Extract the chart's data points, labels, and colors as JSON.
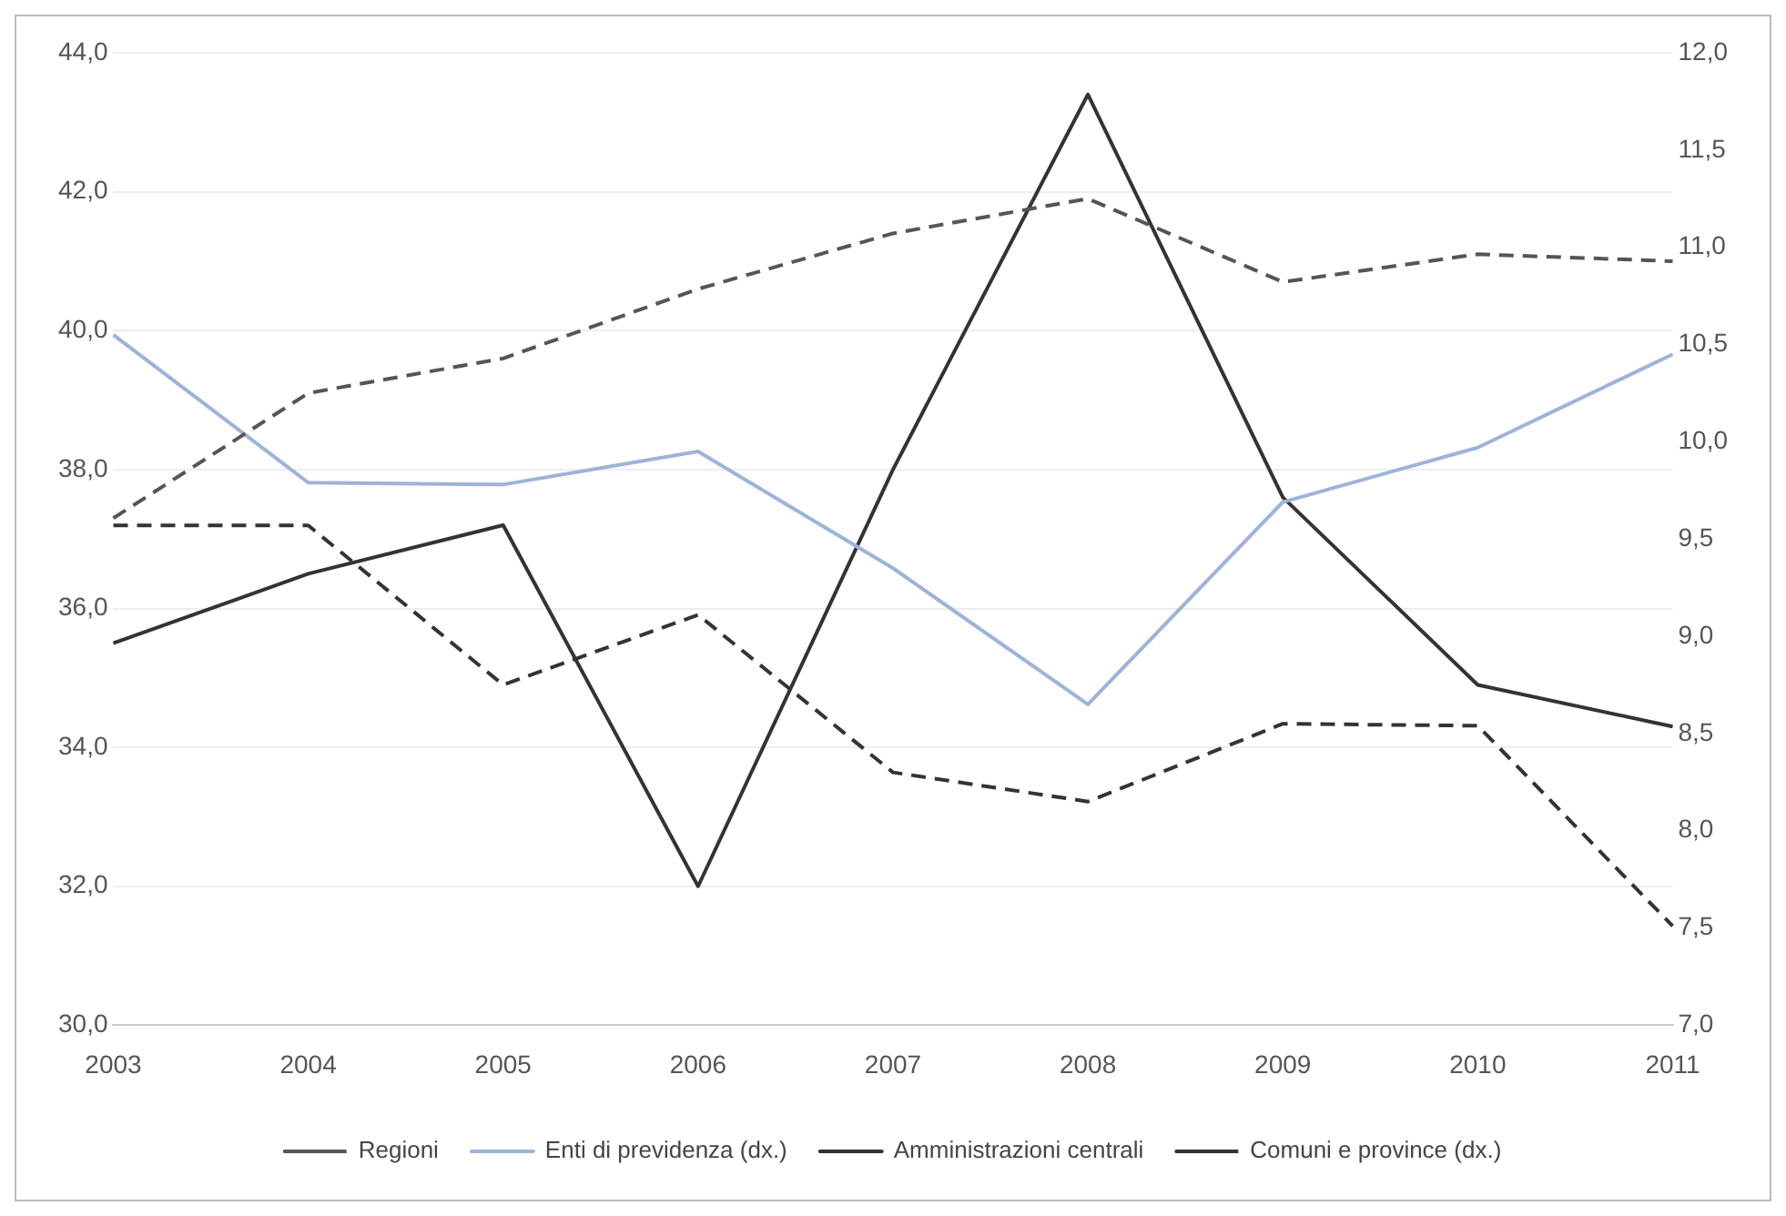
{
  "chart_data": {
    "type": "line",
    "categories": [
      "2003",
      "2004",
      "2005",
      "2006",
      "2007",
      "2008",
      "2009",
      "2010",
      "2011"
    ],
    "series": [
      {
        "name": "Regioni",
        "color": "#555555",
        "line_style": "dashed",
        "values": [
          37.3,
          39.1,
          39.6,
          40.6,
          41.4,
          41.9,
          40.7,
          41.1,
          41.0
        ]
      },
      {
        "name": "Enti di previdenza (dx.)",
        "color": "#9db3d9",
        "line_style": "solid",
        "axis": "y2",
        "values": [
          10.55,
          9.79,
          9.78,
          9.95,
          9.35,
          8.65,
          9.69,
          9.97,
          10.45
        ]
      },
      {
        "name": "Amministrazioni centrali",
        "color": "#333333",
        "line_style": "solid",
        "values": [
          35.5,
          36.5,
          37.2,
          32.0,
          38.0,
          43.4,
          37.6,
          34.9,
          34.3
        ]
      },
      {
        "name": "Comuni e province (dx.)",
        "color": "#333333",
        "line_style": "dashed",
        "axis": "y2",
        "values": [
          9.57,
          9.57,
          8.75,
          9.11,
          8.3,
          8.15,
          8.55,
          8.54,
          7.51
        ]
      }
    ],
    "ylim": [
      30,
      44
    ],
    "yticks": [
      {
        "value": 30,
        "label": "30,0"
      },
      {
        "value": 32,
        "label": "32,0"
      },
      {
        "value": 34,
        "label": "34,0"
      },
      {
        "value": 36,
        "label": "36,0"
      },
      {
        "value": 38,
        "label": "38,0"
      },
      {
        "value": 40,
        "label": "40,0"
      },
      {
        "value": 42,
        "label": "42,0"
      },
      {
        "value": 44,
        "label": "44,0"
      }
    ],
    "y2lim": [
      7,
      12
    ],
    "y2ticks": [
      {
        "value": 7,
        "label": "7,0"
      },
      {
        "value": 7.5,
        "label": "7,5"
      },
      {
        "value": 8,
        "label": "8,0"
      },
      {
        "value": 8.5,
        "label": "8,5"
      },
      {
        "value": 9,
        "label": "9,0"
      },
      {
        "value": 9.5,
        "label": "9,5"
      },
      {
        "value": 10,
        "label": "10,0"
      },
      {
        "value": 10.5,
        "label": "10,5"
      },
      {
        "value": 11,
        "label": "11,0"
      },
      {
        "value": 11.5,
        "label": "11,5"
      },
      {
        "value": 12,
        "label": "12,0"
      }
    ],
    "grid": "y",
    "legend": "bottom",
    "marker": "none"
  }
}
